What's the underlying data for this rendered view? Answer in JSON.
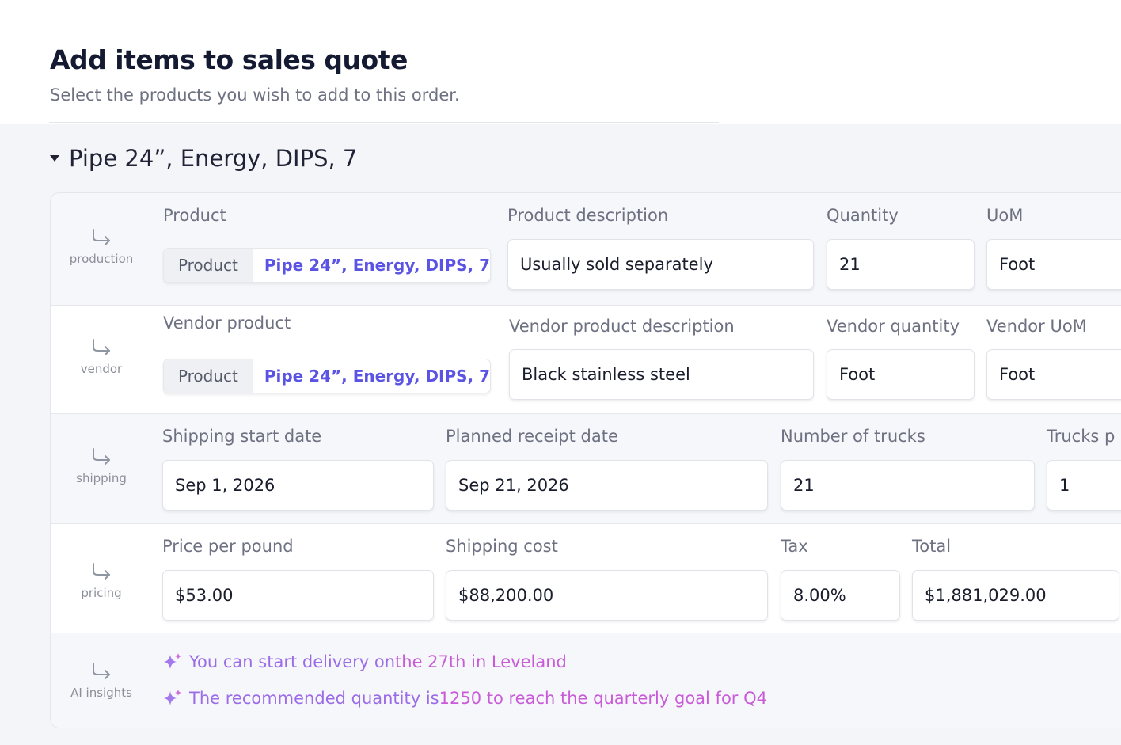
{
  "header": {
    "title": "Add items to sales quote",
    "subtitle": "Select the products you wish to add to this order."
  },
  "group": {
    "title": "Pipe 24”, Energy, DIPS, 7",
    "expanded": true
  },
  "production": {
    "row_label": "production",
    "product_label": "Product",
    "product_key": "Product",
    "product_value": "Pipe 24”, Energy, DIPS, 7",
    "description_label": "Product description",
    "description_value": "Usually sold separately",
    "quantity_label": "Quantity",
    "quantity_value": "21",
    "uom_label": "UoM",
    "uom_value": "Foot"
  },
  "vendor": {
    "row_label": "vendor",
    "product_label": "Vendor product",
    "product_key": "Product",
    "product_value": "Pipe 24”, Energy, DIPS, 7",
    "description_label": "Vendor product description",
    "description_value": "Black stainless steel",
    "quantity_label": "Vendor quantity",
    "quantity_value": "Foot",
    "uom_label": "Vendor UoM",
    "uom_value": "Foot"
  },
  "shipping": {
    "row_label": "shipping",
    "start_label": "Shipping start date",
    "start_value": "Sep 1, 2026",
    "receipt_label": "Planned receipt date",
    "receipt_value": "Sep 21, 2026",
    "trucks_label": "Number of trucks",
    "trucks_value": "21",
    "trucks_per_label": "Trucks p",
    "trucks_per_value": "1"
  },
  "pricing": {
    "row_label": "pricing",
    "price_label": "Price per pound",
    "price_value": "$53.00",
    "shipping_label": "Shipping cost",
    "shipping_value": "$88,200.00",
    "tax_label": "Tax",
    "tax_value": "8.00%",
    "total_label": "Total",
    "total_value": "$1,881,029.00"
  },
  "insights": {
    "row_label": "AI insights",
    "items": [
      {
        "lead": "You can start delivery on ",
        "highlight": "the 27th in Leveland"
      },
      {
        "lead": "The recommended quantity is ",
        "highlight": "1250 to reach the quarterly goal for Q4"
      }
    ]
  },
  "colors": {
    "accent": "#5a53e3",
    "insight_lead": "#9b6ce8",
    "insight_highlight": "#c95bd9",
    "panel_bg": "#f3f5f8"
  },
  "icons": {
    "row_icon": "corner-down-right-arrow-icon",
    "insight_icon": "sparkle-icon",
    "group_toggle": "caret-down-icon"
  }
}
